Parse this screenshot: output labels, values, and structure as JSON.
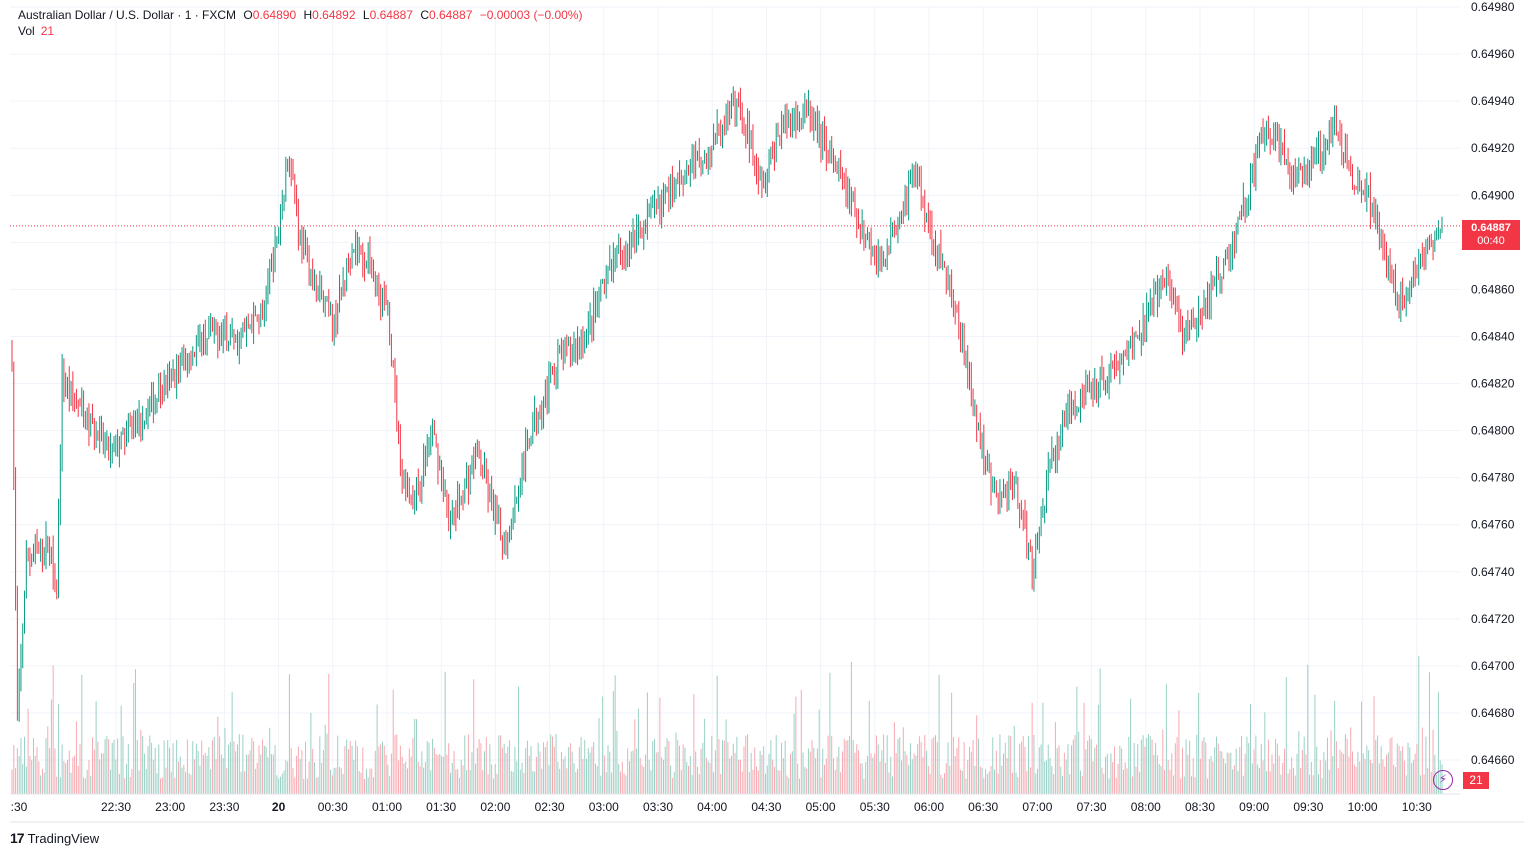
{
  "legend": {
    "symbol": "Australian Dollar / U.S. Dollar · 1 · FXCM",
    "open_label": "O",
    "open": "0.64890",
    "high_label": "H",
    "high": "0.64892",
    "low_label": "L",
    "low": "0.64887",
    "close_label": "C",
    "close": "0.64887",
    "change": "−0.00003 (−0.00%)",
    "vol_label": "Vol",
    "vol": "21"
  },
  "last_price": {
    "price": "0.64887",
    "countdown": "00:40"
  },
  "volume_badge": "21",
  "brand": {
    "logo": "17",
    "name": "TradingView"
  },
  "colors": {
    "up": "#089981",
    "down": "#f23645",
    "up_vol": "#9ad0c5",
    "down_vol": "#f7a9b0",
    "grid": "#f0f3fa"
  },
  "chart_data": {
    "type": "candlestick",
    "title": "Australian Dollar / U.S. Dollar · 1 · FXCM",
    "ylim": [
      0.6466,
      0.6498
    ],
    "y_ticks": [
      "0.64980",
      "0.64960",
      "0.64940",
      "0.64920",
      "0.64900",
      "0.64880",
      "0.64860",
      "0.64840",
      "0.64820",
      "0.64800",
      "0.64780",
      "0.64760",
      "0.64740",
      "0.64720",
      "0.64700",
      "0.64680",
      "0.64660"
    ],
    "x_ticks": [
      ":30",
      "22:30",
      "23:00",
      "23:30",
      "20",
      "00:30",
      "01:00",
      "01:30",
      "02:00",
      "02:30",
      "03:00",
      "03:30",
      "04:00",
      "04:30",
      "05:00",
      "05:30",
      "06:00",
      "06:30",
      "07:00",
      "07:30",
      "08:00",
      "08:30",
      "09:00",
      "09:30",
      "10:00",
      "10:30"
    ],
    "price_path": [
      [
        0,
        0.64832
      ],
      [
        3,
        0.64675
      ],
      [
        8,
        0.64745
      ],
      [
        20,
        0.64752
      ],
      [
        25,
        0.64735
      ],
      [
        28,
        0.64822
      ],
      [
        42,
        0.64804
      ],
      [
        55,
        0.6479
      ],
      [
        75,
        0.64808
      ],
      [
        95,
        0.64828
      ],
      [
        110,
        0.64842
      ],
      [
        125,
        0.64838
      ],
      [
        140,
        0.6485
      ],
      [
        148,
        0.6488
      ],
      [
        155,
        0.6492
      ],
      [
        160,
        0.64885
      ],
      [
        170,
        0.6486
      ],
      [
        180,
        0.64845
      ],
      [
        190,
        0.6488
      ],
      [
        200,
        0.6487
      ],
      [
        210,
        0.6485
      ],
      [
        218,
        0.6478
      ],
      [
        225,
        0.6477
      ],
      [
        235,
        0.648
      ],
      [
        245,
        0.6476
      ],
      [
        260,
        0.6479
      ],
      [
        275,
        0.6475
      ],
      [
        290,
        0.648
      ],
      [
        305,
        0.6483
      ],
      [
        320,
        0.6484
      ],
      [
        335,
        0.6487
      ],
      [
        345,
        0.6488
      ],
      [
        360,
        0.64895
      ],
      [
        375,
        0.6491
      ],
      [
        390,
        0.6492
      ],
      [
        405,
        0.6494
      ],
      [
        420,
        0.64905
      ],
      [
        430,
        0.6493
      ],
      [
        445,
        0.64935
      ],
      [
        455,
        0.6492
      ],
      [
        470,
        0.64895
      ],
      [
        485,
        0.6487
      ],
      [
        495,
        0.6489
      ],
      [
        505,
        0.6491
      ],
      [
        515,
        0.6488
      ],
      [
        525,
        0.6486
      ],
      [
        540,
        0.648
      ],
      [
        550,
        0.6477
      ],
      [
        560,
        0.6478
      ],
      [
        570,
        0.6474
      ],
      [
        580,
        0.64785
      ],
      [
        590,
        0.6481
      ],
      [
        605,
        0.6482
      ],
      [
        620,
        0.6483
      ],
      [
        635,
        0.6485
      ],
      [
        645,
        0.64865
      ],
      [
        655,
        0.6484
      ],
      [
        665,
        0.6485
      ],
      [
        680,
        0.64875
      ],
      [
        690,
        0.649
      ],
      [
        700,
        0.6493
      ],
      [
        715,
        0.6491
      ],
      [
        725,
        0.6491
      ],
      [
        738,
        0.6493
      ],
      [
        748,
        0.6491
      ],
      [
        758,
        0.649
      ],
      [
        765,
        0.6488
      ],
      [
        775,
        0.64852
      ],
      [
        785,
        0.6487
      ],
      [
        800,
        0.64887
      ]
    ],
    "volume_range": [
      0,
      300
    ],
    "last_volume": 21
  }
}
